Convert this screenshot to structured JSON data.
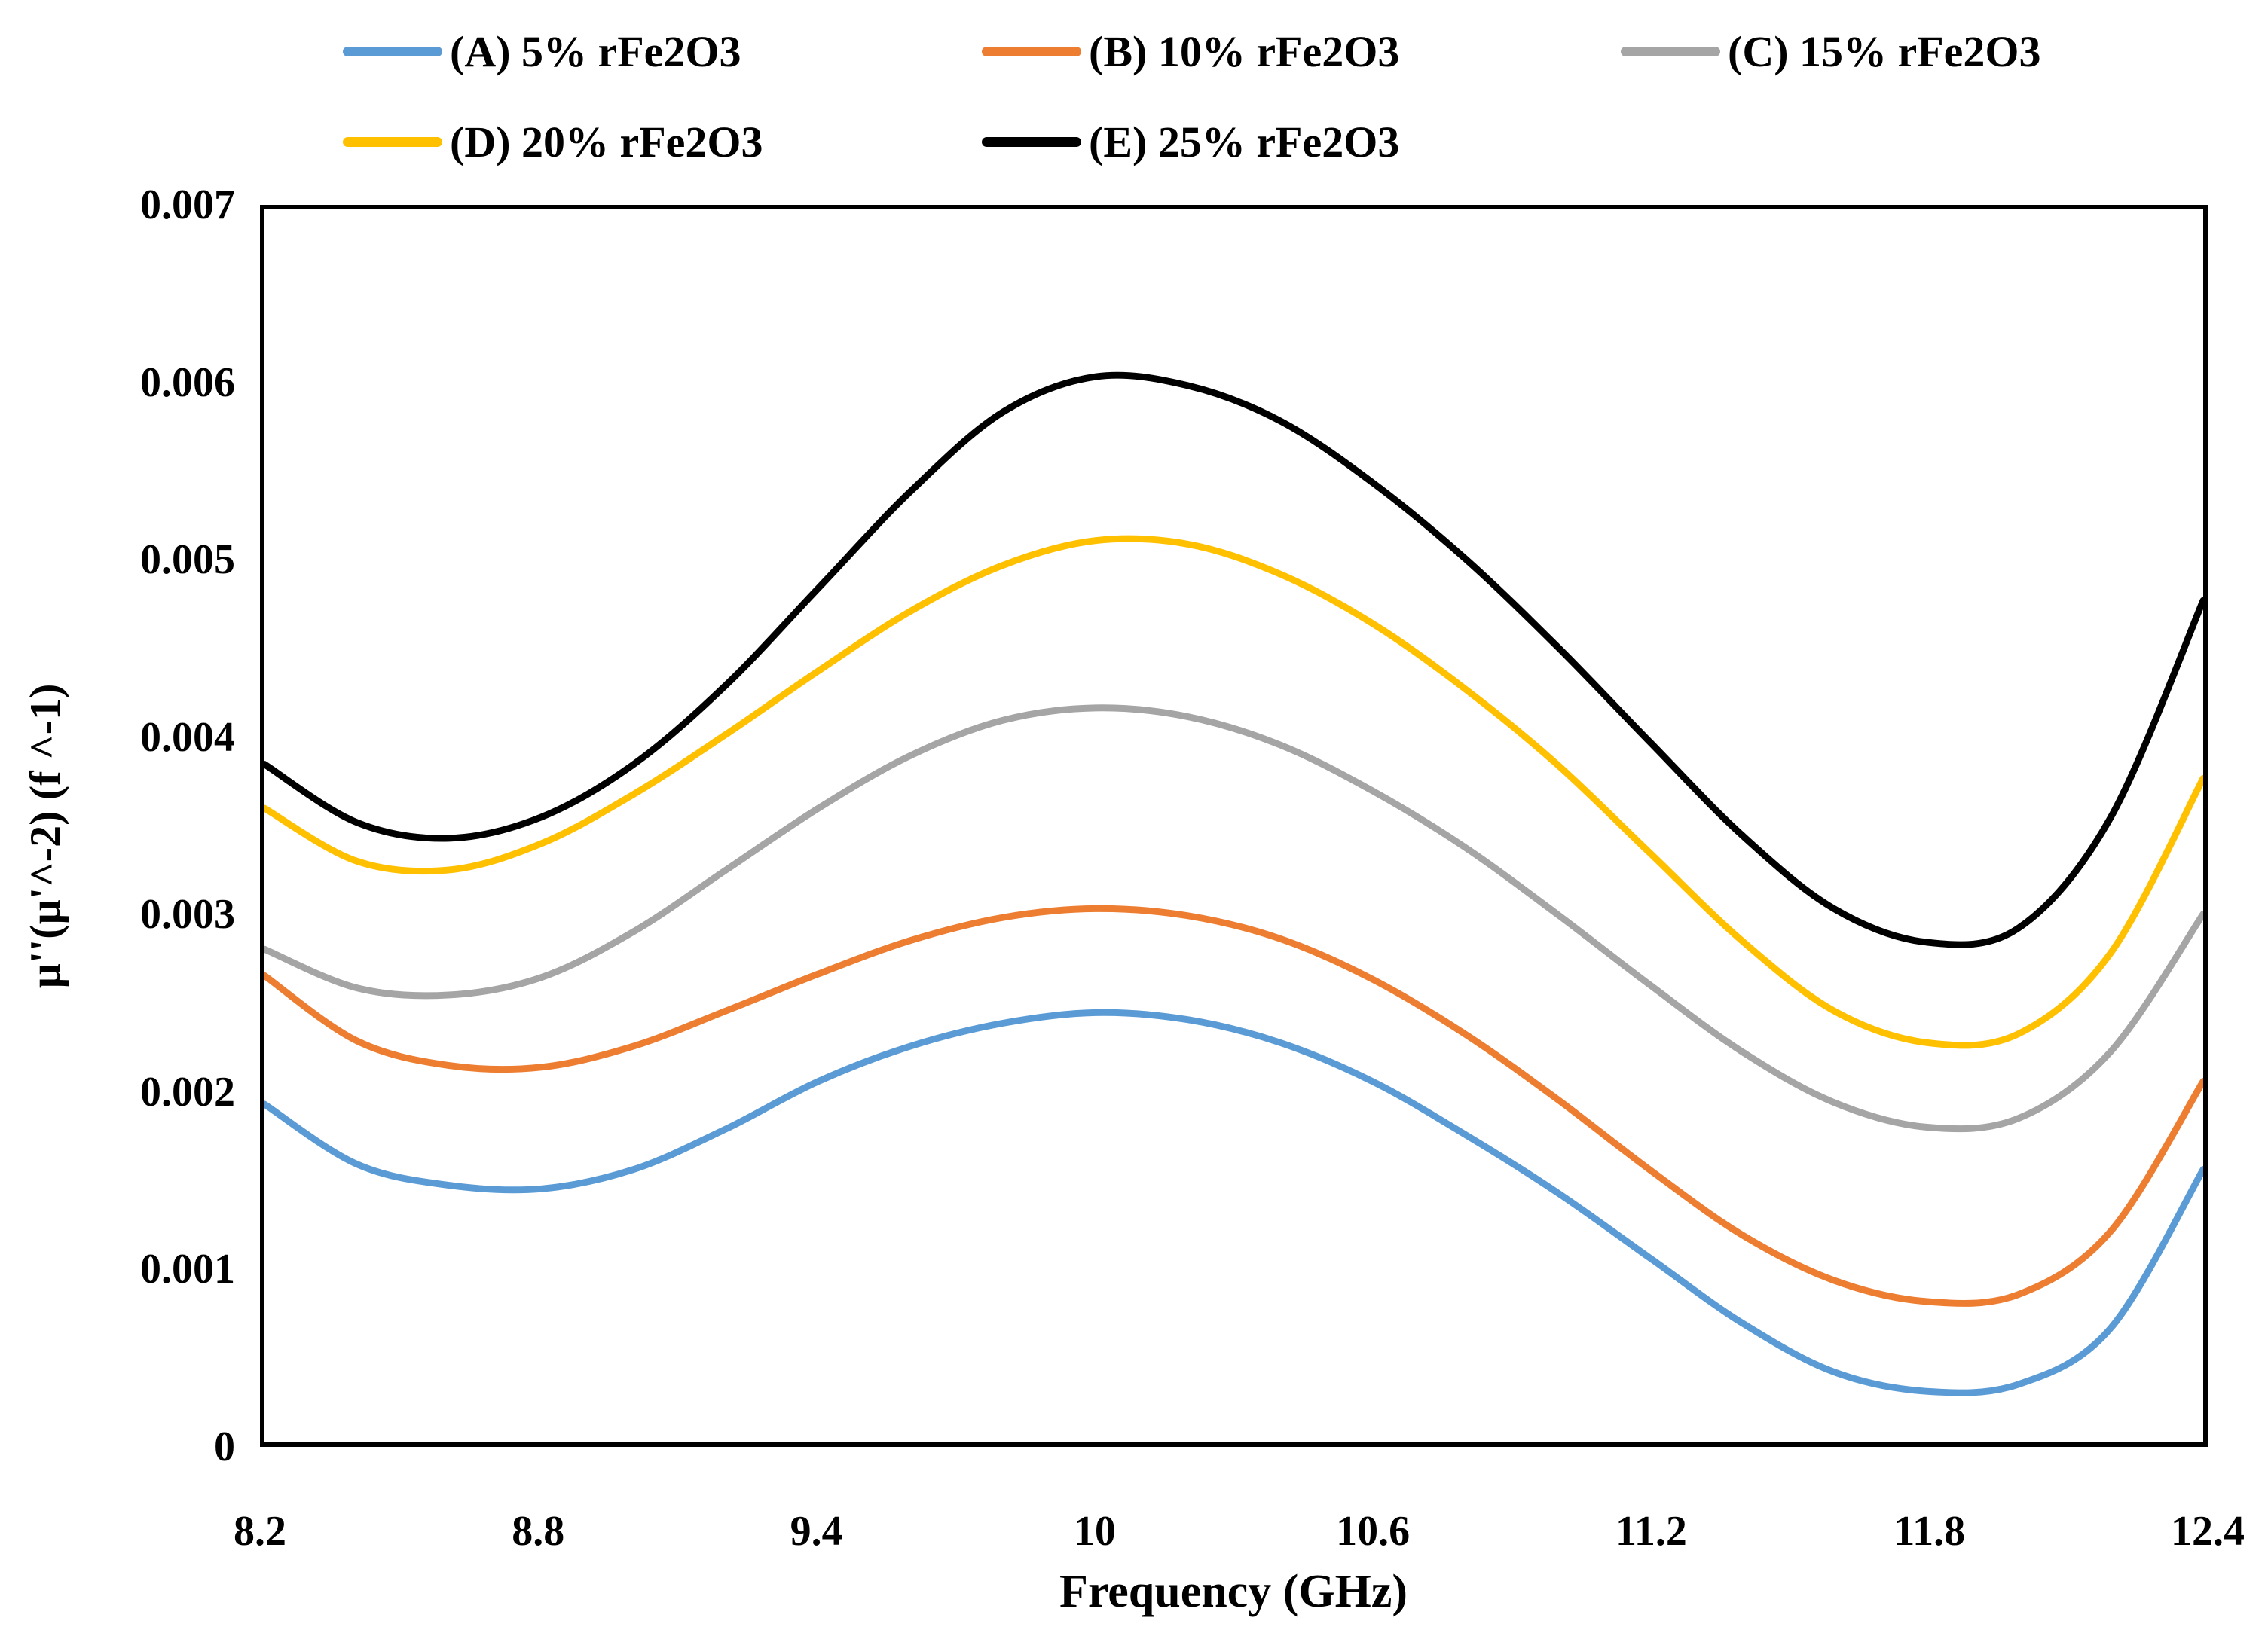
{
  "chart_data": {
    "type": "line",
    "title": "",
    "xlabel": "Frequency (GHz)",
    "ylabel": "µ''(µ'^-2) (f ^-1)",
    "xlim": [
      8.2,
      12.4
    ],
    "ylim": [
      0,
      0.007
    ],
    "grid": false,
    "legend_position": "top",
    "x_ticks": [
      "8.2",
      "8.8",
      "9.4",
      "10",
      "10.6",
      "11.2",
      "11.8",
      "12.4"
    ],
    "y_ticks": [
      "0",
      "0.001",
      "0.002",
      "0.003",
      "0.004",
      "0.005",
      "0.006",
      "0.007"
    ],
    "x": [
      8.2,
      8.4,
      8.6,
      8.8,
      9.0,
      9.2,
      9.4,
      9.6,
      9.8,
      10.0,
      10.2,
      10.4,
      10.6,
      10.8,
      11.0,
      11.2,
      11.4,
      11.6,
      11.8,
      12.0,
      12.2,
      12.4
    ],
    "series": [
      {
        "name": "(A) 5% rFe2O3",
        "color": "#5B9BD5",
        "values": [
          0.00192,
          0.00158,
          0.00146,
          0.00144,
          0.00155,
          0.00178,
          0.00205,
          0.00225,
          0.00238,
          0.00244,
          0.0024,
          0.00227,
          0.00205,
          0.00175,
          0.00142,
          0.00105,
          0.00068,
          0.0004,
          0.00029,
          0.00033,
          0.00065,
          0.00155
        ]
      },
      {
        "name": "(B) 10% rFe2O3",
        "color": "#ED7D31",
        "values": [
          0.00265,
          0.00228,
          0.00214,
          0.00213,
          0.00225,
          0.00245,
          0.00266,
          0.00285,
          0.00298,
          0.00303,
          0.00299,
          0.00286,
          0.00263,
          0.00232,
          0.00195,
          0.00155,
          0.00118,
          0.00092,
          0.0008,
          0.00084,
          0.0012,
          0.00205
        ]
      },
      {
        "name": "(C) 15% rFe2O3",
        "color": "#A5A5A5",
        "values": [
          0.0028,
          0.00258,
          0.00254,
          0.00264,
          0.0029,
          0.00325,
          0.0036,
          0.0039,
          0.0041,
          0.00417,
          0.00412,
          0.00396,
          0.0037,
          0.00338,
          0.003,
          0.0026,
          0.00222,
          0.00193,
          0.00179,
          0.00184,
          0.00222,
          0.003
        ]
      },
      {
        "name": "(D) 20% rFe2O3",
        "color": "#FFC000",
        "values": [
          0.0036,
          0.0033,
          0.00325,
          0.0034,
          0.00368,
          0.00402,
          0.00438,
          0.00472,
          0.00498,
          0.00512,
          0.0051,
          0.00493,
          0.00465,
          0.00428,
          0.00385,
          0.00335,
          0.00285,
          0.00245,
          0.00227,
          0.00232,
          0.00278,
          0.00377
        ]
      },
      {
        "name": "(E) 25% rFe2O3",
        "color": "#000000",
        "values": [
          0.00385,
          0.00352,
          0.00343,
          0.00355,
          0.00385,
          0.0043,
          0.00485,
          0.0054,
          0.00585,
          0.00605,
          0.006,
          0.0058,
          0.00545,
          0.00502,
          0.00452,
          0.00398,
          0.00345,
          0.00303,
          0.00284,
          0.00292,
          0.00355,
          0.00478
        ]
      }
    ]
  },
  "style": {
    "line_width": 9,
    "frame_color": "#000000",
    "background": "#ffffff"
  }
}
